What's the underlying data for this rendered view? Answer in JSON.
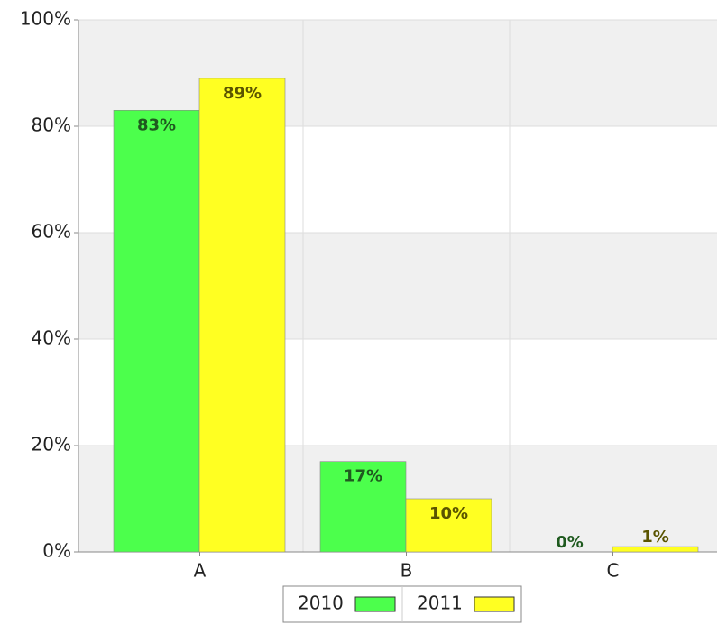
{
  "chart_data": {
    "type": "bar",
    "categories": [
      "A",
      "B",
      "C"
    ],
    "series": [
      {
        "name": "2010",
        "color": "#4cff4c",
        "label_color": "#1f5a1f",
        "values": [
          83,
          17,
          0
        ],
        "value_labels": [
          "83%",
          "17%",
          "0%"
        ]
      },
      {
        "name": "2011",
        "color": "#ffff22",
        "label_color": "#5a5400",
        "values": [
          89,
          10,
          1
        ],
        "value_labels": [
          "89%",
          "10%",
          "1%"
        ]
      }
    ],
    "ylim": [
      0,
      100
    ],
    "yticks": [
      {
        "value": 0,
        "label": "0%"
      },
      {
        "value": 20,
        "label": "20%"
      },
      {
        "value": 40,
        "label": "40%"
      },
      {
        "value": 60,
        "label": "60%"
      },
      {
        "value": 80,
        "label": "80%"
      },
      {
        "value": 100,
        "label": "100%"
      }
    ],
    "grid": true,
    "legend": "bottom"
  }
}
